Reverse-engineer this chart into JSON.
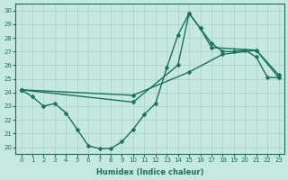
{
  "xlabel": "Humidex (Indice chaleur)",
  "bg_color": "#c5e8e0",
  "line_color": "#1a7060",
  "grid_color": "#a8cfc8",
  "xlim": [
    -0.5,
    23.5
  ],
  "ylim": [
    19.5,
    30.5
  ],
  "xticks": [
    0,
    1,
    2,
    3,
    4,
    5,
    6,
    7,
    8,
    9,
    10,
    11,
    12,
    13,
    14,
    15,
    16,
    17,
    18,
    19,
    20,
    21,
    22,
    23
  ],
  "yticks": [
    20,
    21,
    22,
    23,
    24,
    25,
    26,
    27,
    28,
    29,
    30
  ],
  "line1_x": [
    0,
    1,
    2,
    3,
    4,
    5,
    6,
    7,
    8,
    9,
    10,
    11,
    12,
    13,
    14,
    15,
    16,
    17,
    18,
    19,
    20,
    21,
    22,
    23
  ],
  "line1_y": [
    24.2,
    23.7,
    23.0,
    23.2,
    22.5,
    21.3,
    20.1,
    19.9,
    19.9,
    20.4,
    21.3,
    22.4,
    23.2,
    25.8,
    28.2,
    29.8,
    28.7,
    27.6,
    27.0,
    27.0,
    27.1,
    26.6,
    25.1,
    25.1
  ],
  "line2_x": [
    0,
    10,
    14,
    15,
    16,
    17,
    21,
    23
  ],
  "line2_y": [
    24.2,
    23.3,
    26.0,
    29.8,
    28.7,
    27.3,
    27.1,
    25.1
  ],
  "line3_x": [
    0,
    10,
    15,
    18,
    21,
    23
  ],
  "line3_y": [
    24.2,
    23.8,
    25.5,
    26.8,
    27.1,
    25.3
  ],
  "markersize": 2.5,
  "linewidth": 1.0,
  "tick_fontsize": 5,
  "xlabel_fontsize": 6
}
